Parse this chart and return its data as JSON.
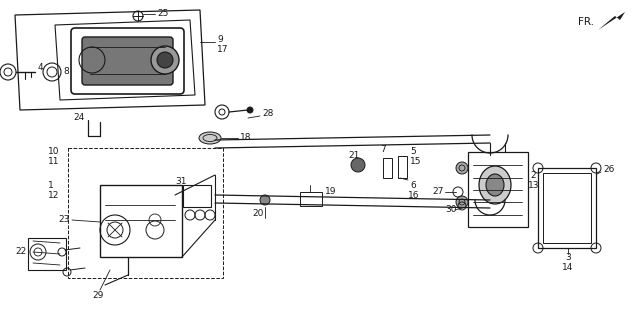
{
  "bg_color": "#ffffff",
  "lc": "#1a1a1a",
  "figsize": [
    6.4,
    3.1
  ],
  "dpi": 100
}
